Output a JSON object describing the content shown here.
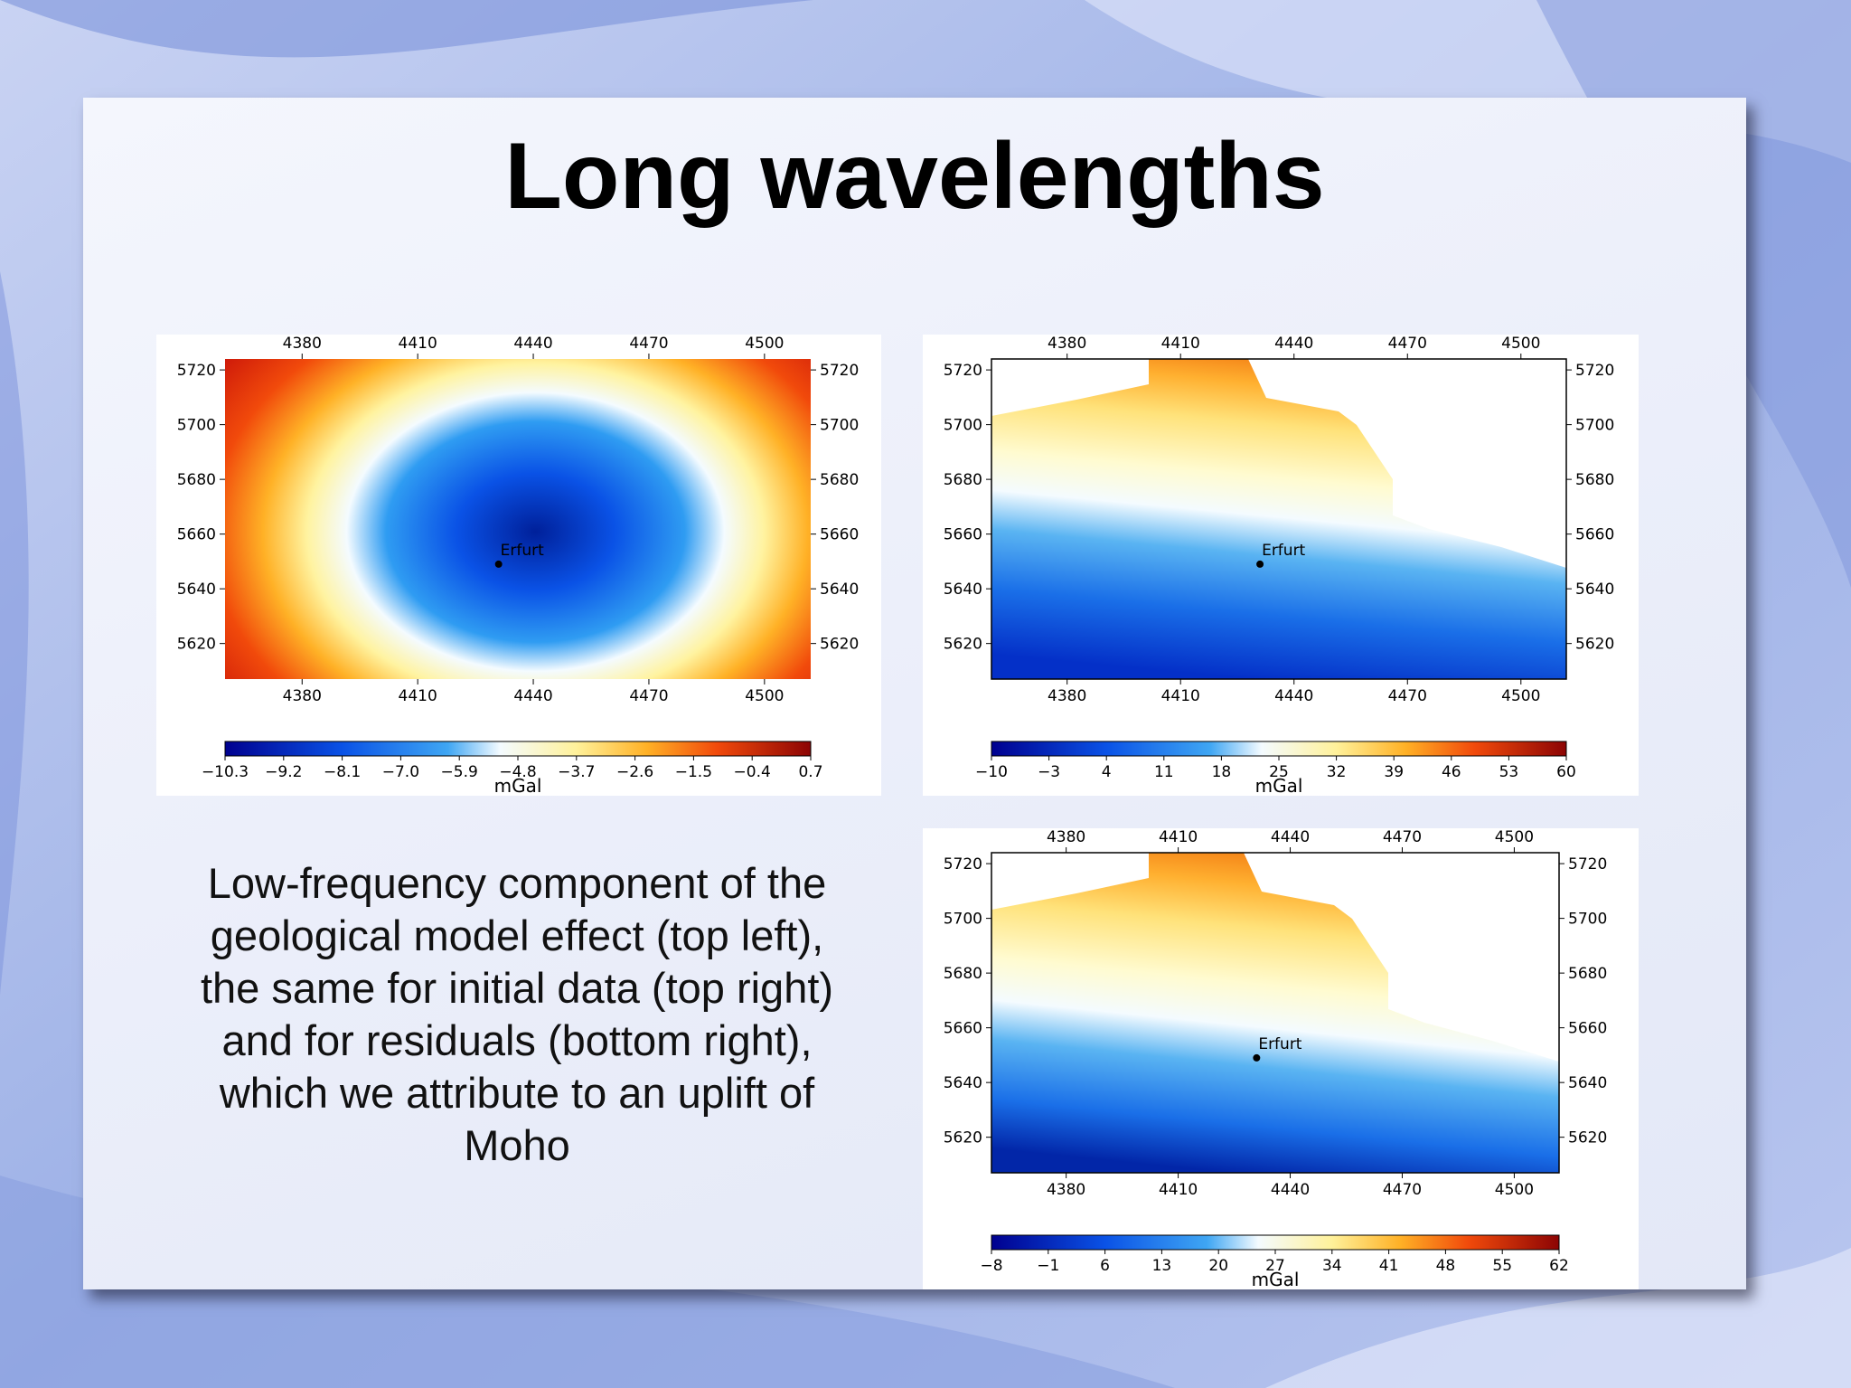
{
  "slide": {
    "title": "Long wavelengths",
    "caption": "Low-frequency component of the geological model effect (top left), the same for initial data (top right) and for residuals (bottom right), which we attribute to an uplift of Moho"
  },
  "chart_data": [
    {
      "type": "heatmap",
      "id": "model-effect",
      "x_ticks": [
        4380,
        4410,
        4440,
        4470,
        4500
      ],
      "y_ticks": [
        5720,
        5700,
        5680,
        5660,
        5640,
        5620
      ],
      "xlim": [
        4360,
        4512
      ],
      "ylim": [
        5607,
        5724
      ],
      "colorbar_ticks": [
        "−10.3",
        "−9.2",
        "−8.1",
        "−7.0",
        "−5.9",
        "−4.8",
        "−3.7",
        "−2.6",
        "−1.5",
        "−0.4",
        "0.7"
      ],
      "colorbar_range": [
        -10.3,
        0.7
      ],
      "colorbar_label": "mGal",
      "marker": {
        "label": "Erfurt",
        "x": 4431,
        "y": 5649
      },
      "colormap": "blue-white-yellow-red"
    },
    {
      "type": "heatmap",
      "id": "initial-data",
      "x_ticks": [
        4380,
        4410,
        4440,
        4470,
        4500
      ],
      "y_ticks": [
        5720,
        5700,
        5680,
        5660,
        5640,
        5620
      ],
      "xlim": [
        4360,
        4512
      ],
      "ylim": [
        5607,
        5724
      ],
      "colorbar_ticks": [
        "−10",
        "−3",
        "4",
        "11",
        "18",
        "25",
        "32",
        "39",
        "46",
        "53",
        "60"
      ],
      "colorbar_range": [
        -10,
        60
      ],
      "colorbar_label": "mGal",
      "marker": {
        "label": "Erfurt",
        "x": 4431,
        "y": 5649
      },
      "colormap": "blue-white-yellow-red"
    },
    {
      "type": "heatmap",
      "id": "residuals",
      "x_ticks": [
        4380,
        4410,
        4440,
        4470,
        4500
      ],
      "y_ticks": [
        5720,
        5700,
        5680,
        5660,
        5640,
        5620
      ],
      "xlim": [
        4360,
        4512
      ],
      "ylim": [
        5607,
        5724
      ],
      "colorbar_ticks": [
        "−8",
        "−1",
        "6",
        "13",
        "20",
        "27",
        "34",
        "41",
        "48",
        "55",
        "62"
      ],
      "colorbar_range": [
        -8,
        62
      ],
      "colorbar_label": "mGal",
      "marker": {
        "label": "Erfurt",
        "x": 4431,
        "y": 5649
      },
      "colormap": "blue-white-yellow-red"
    }
  ]
}
